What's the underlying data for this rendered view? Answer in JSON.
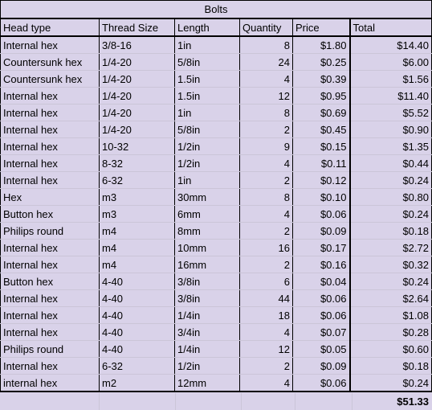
{
  "title": "Bolts",
  "columns": [
    "Head type",
    "Thread Size",
    "Length",
    "Quantity",
    "Price",
    "Total"
  ],
  "rows": [
    [
      "Internal hex",
      "3/8-16",
      "1in",
      "8",
      "$1.80",
      "$14.40"
    ],
    [
      "Countersunk hex",
      "1/4-20",
      "5/8in",
      "24",
      "$0.25",
      "$6.00"
    ],
    [
      "Countersunk hex",
      "1/4-20",
      "1.5in",
      "4",
      "$0.39",
      "$1.56"
    ],
    [
      "Internal hex",
      "1/4-20",
      "1.5in",
      "12",
      "$0.95",
      "$11.40"
    ],
    [
      "Internal hex",
      "1/4-20",
      "1in",
      "8",
      "$0.69",
      "$5.52"
    ],
    [
      "Internal hex",
      "1/4-20",
      "5/8in",
      "2",
      "$0.45",
      "$0.90"
    ],
    [
      "Internal hex",
      "10-32",
      "1/2in",
      "9",
      "$0.15",
      "$1.35"
    ],
    [
      "Internal hex",
      "8-32",
      "1/2in",
      "4",
      "$0.11",
      "$0.44"
    ],
    [
      "Internal hex",
      "6-32",
      "1in",
      "2",
      "$0.12",
      "$0.24"
    ],
    [
      "Hex",
      "m3",
      "30mm",
      "8",
      "$0.10",
      "$0.80"
    ],
    [
      "Button hex",
      "m3",
      "6mm",
      "4",
      "$0.06",
      "$0.24"
    ],
    [
      "Philips round",
      "m4",
      "8mm",
      "2",
      "$0.09",
      "$0.18"
    ],
    [
      "Internal hex",
      "m4",
      "10mm",
      "16",
      "$0.17",
      "$2.72"
    ],
    [
      "Internal hex",
      "m4",
      "16mm",
      "2",
      "$0.16",
      "$0.32"
    ],
    [
      "Button hex",
      "4-40",
      "3/8in",
      "6",
      "$0.04",
      "$0.24"
    ],
    [
      "Internal hex",
      "4-40",
      "3/8in",
      "44",
      "$0.06",
      "$2.64"
    ],
    [
      "Internal hex",
      "4-40",
      "1/4in",
      "18",
      "$0.06",
      "$1.08"
    ],
    [
      "Internal hex",
      "4-40",
      "3/4in",
      "4",
      "$0.07",
      "$0.28"
    ],
    [
      "Philips round",
      "4-40",
      "1/4in",
      "12",
      "$0.05",
      "$0.60"
    ],
    [
      "Internal hex",
      "6-32",
      "1/2in",
      "2",
      "$0.09",
      "$0.18"
    ],
    [
      "internal hex",
      "m2",
      "12mm",
      "4",
      "$0.06",
      "$0.24"
    ]
  ],
  "grand_total": "$51.33",
  "colors": {
    "fill": "#d9d2e9",
    "border": "#000000",
    "gridline": "#cbc5d8"
  }
}
